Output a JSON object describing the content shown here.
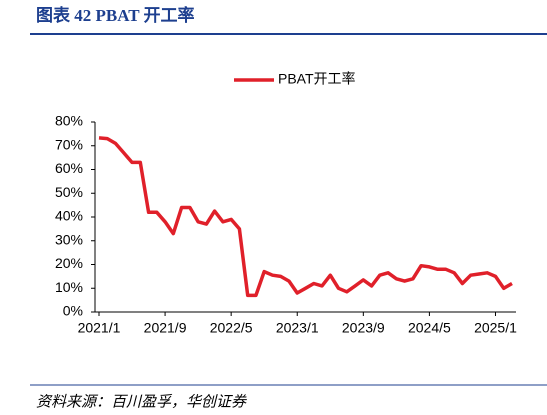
{
  "chart_data": {
    "type": "line",
    "title": "图表 42  PBAT 开工率",
    "source": "资料来源：百川盈孚，华创证券",
    "categories": [
      "2021/1",
      null,
      null,
      null,
      null,
      null,
      null,
      null,
      "2021/9",
      null,
      null,
      null,
      null,
      null,
      null,
      null,
      "2022/5",
      null,
      null,
      null,
      null,
      null,
      null,
      null,
      "2023/1",
      null,
      null,
      null,
      null,
      null,
      null,
      null,
      "2023/9",
      null,
      null,
      null,
      null,
      null,
      null,
      null,
      "2024/5",
      null,
      null,
      null,
      null,
      null,
      null,
      null,
      "2025/1",
      null,
      null
    ],
    "series": [
      {
        "name": "PBAT开工率",
        "color": "#e0202a",
        "values": [
          73.3,
          73,
          71,
          67,
          63,
          63,
          42,
          42,
          38,
          33,
          44,
          44,
          38,
          37,
          42.5,
          38,
          39,
          35,
          7,
          7,
          17,
          15.5,
          15,
          13,
          8,
          10,
          12,
          11,
          15.5,
          10,
          8.5,
          11,
          13.5,
          11,
          15.5,
          16.5,
          14,
          13,
          14,
          19.5,
          19,
          18,
          18,
          16.5,
          12,
          15.5,
          16,
          16.5,
          15,
          10,
          12
        ]
      }
    ],
    "ylim": [
      0,
      80
    ],
    "yticks": [
      {
        "value": 0,
        "label": "0%"
      },
      {
        "value": 10,
        "label": "10%"
      },
      {
        "value": 20,
        "label": "20%"
      },
      {
        "value": 30,
        "label": "30%"
      },
      {
        "value": 40,
        "label": "40%"
      },
      {
        "value": 50,
        "label": "50%"
      },
      {
        "value": 60,
        "label": "60%"
      },
      {
        "value": 70,
        "label": "70%"
      },
      {
        "value": 80,
        "label": "80%"
      }
    ],
    "legend": "top"
  }
}
